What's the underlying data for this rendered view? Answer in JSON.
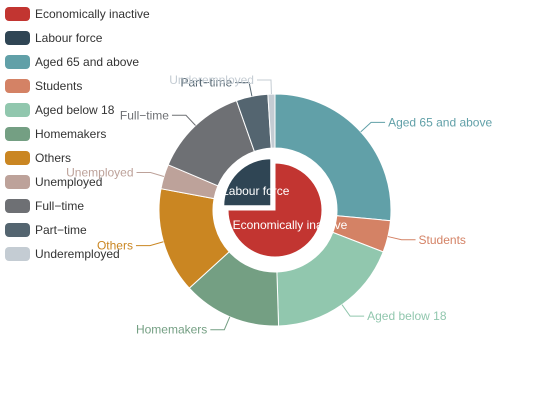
{
  "chart_data": {
    "type": "pie",
    "title": "",
    "legend_position": "top-left",
    "inner": {
      "style": "pie",
      "series": [
        {
          "name": "Economically inactive",
          "value": 75,
          "color": "#c23531"
        },
        {
          "name": "Labour force",
          "value": 25,
          "color": "#2f4554",
          "offset": true
        }
      ]
    },
    "outer": {
      "style": "donut",
      "series": [
        {
          "name": "Aged 65 and above",
          "value": 27,
          "color": "#61a0a8"
        },
        {
          "name": "Students",
          "value": 4.5,
          "color": "#d48265"
        },
        {
          "name": "Aged below 18",
          "value": 19,
          "color": "#91c7ae"
        },
        {
          "name": "Homemakers",
          "value": 14,
          "color": "#749f83"
        },
        {
          "name": "Others",
          "value": 15,
          "color": "#ca8622"
        },
        {
          "name": "Unemployed",
          "value": 3.5,
          "color": "#bda29a"
        },
        {
          "name": "Full-time",
          "value": 13.5,
          "color": "#6e7074"
        },
        {
          "name": "Part-time",
          "value": 4.5,
          "color": "#546570"
        },
        {
          "name": "Underemployed",
          "value": 1,
          "color": "#c4ccd3"
        }
      ]
    },
    "legend": [
      {
        "label": "Economically inactive",
        "color": "#c23531"
      },
      {
        "label": "Labour force",
        "color": "#2f4554"
      },
      {
        "label": "Aged 65 and above",
        "color": "#61a0a8"
      },
      {
        "label": "Students",
        "color": "#d48265"
      },
      {
        "label": "Aged below 18",
        "color": "#91c7ae"
      },
      {
        "label": "Homemakers",
        "color": "#749f83"
      },
      {
        "label": "Others",
        "color": "#ca8622"
      },
      {
        "label": "Unemployed",
        "color": "#bda29a"
      },
      {
        "label": "Full−time",
        "color": "#6e7074"
      },
      {
        "label": "Part−time",
        "color": "#546570"
      },
      {
        "label": "Underemployed",
        "color": "#c4ccd3"
      }
    ],
    "outer_labels": [
      "Aged 65 and above",
      "Students",
      "Aged below 18",
      "Homemakers",
      "Others",
      "Unemployed",
      "Full−time",
      "Part−time",
      "Underemployed"
    ],
    "inner_labels": [
      "Economically inactive",
      "Labour force"
    ]
  }
}
